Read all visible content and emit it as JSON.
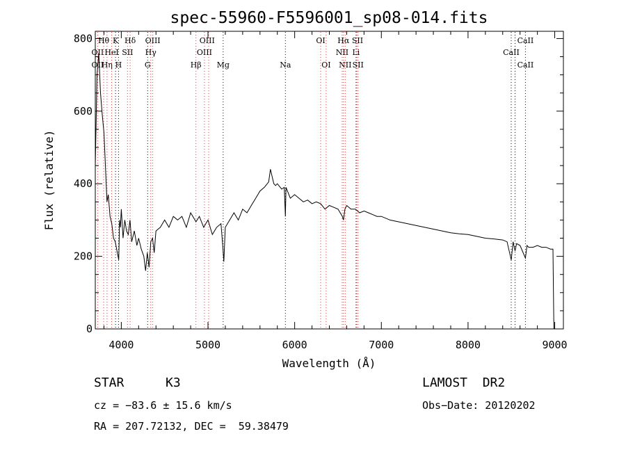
{
  "chart_data": {
    "type": "line",
    "title": "spec-55960-F5596001_sp08-014.fits",
    "xlabel": "Wavelength (Å)",
    "ylabel": "Flux (relative)",
    "xlim": [
      3700,
      9100
    ],
    "ylim": [
      0,
      820
    ],
    "x_ticks": [
      4000,
      5000,
      6000,
      7000,
      8000,
      9000
    ],
    "y_ticks": [
      0,
      200,
      400,
      600,
      800
    ],
    "series": [
      {
        "x": [
          3700,
          3720,
          3740,
          3760,
          3780,
          3800,
          3820,
          3835,
          3850,
          3870,
          3890,
          3910,
          3930,
          3950,
          3970,
          3980,
          3990,
          4000,
          4020,
          4040,
          4060,
          4080,
          4100,
          4120,
          4150,
          4180,
          4200,
          4230,
          4260,
          4280,
          4300,
          4320,
          4340,
          4360,
          4380,
          4400,
          4450,
          4500,
          4550,
          4600,
          4650,
          4700,
          4750,
          4800,
          4850,
          4861,
          4900,
          4950,
          5000,
          5050,
          5100,
          5150,
          5170,
          5183,
          5200,
          5250,
          5300,
          5350,
          5400,
          5450,
          5500,
          5550,
          5600,
          5650,
          5700,
          5720,
          5740,
          5760,
          5780,
          5800,
          5850,
          5880,
          5893,
          5900,
          5950,
          6000,
          6050,
          6100,
          6150,
          6200,
          6250,
          6300,
          6350,
          6400,
          6450,
          6500,
          6550,
          6563,
          6580,
          6600,
          6650,
          6700,
          6750,
          6800,
          6850,
          6900,
          6950,
          7000,
          7100,
          7200,
          7300,
          7400,
          7500,
          7600,
          7700,
          7800,
          7900,
          8000,
          8100,
          8200,
          8300,
          8400,
          8450,
          8498,
          8520,
          8542,
          8560,
          8600,
          8662,
          8680,
          8700,
          8750,
          8800,
          8850,
          8900,
          8950,
          8980,
          8990
        ],
        "y": [
          450,
          700,
          760,
          650,
          590,
          540,
          430,
          350,
          370,
          310,
          290,
          250,
          240,
          215,
          190,
          300,
          280,
          330,
          250,
          300,
          270,
          260,
          300,
          240,
          270,
          230,
          250,
          220,
          200,
          160,
          210,
          170,
          240,
          250,
          210,
          270,
          280,
          300,
          280,
          310,
          300,
          310,
          280,
          320,
          300,
          295,
          310,
          280,
          300,
          260,
          280,
          290,
          230,
          185,
          280,
          300,
          320,
          300,
          330,
          320,
          340,
          360,
          380,
          390,
          405,
          440,
          420,
          400,
          395,
          400,
          385,
          390,
          310,
          390,
          360,
          370,
          360,
          350,
          355,
          345,
          350,
          345,
          330,
          340,
          335,
          330,
          310,
          300,
          330,
          340,
          330,
          330,
          320,
          325,
          320,
          315,
          310,
          310,
          300,
          295,
          290,
          285,
          280,
          275,
          270,
          265,
          262,
          260,
          255,
          250,
          248,
          245,
          240,
          190,
          240,
          215,
          235,
          230,
          195,
          230,
          225,
          225,
          230,
          225,
          225,
          220,
          220,
          0
        ]
      }
    ],
    "lines_red": [
      {
        "x": 3727,
        "label": "OII"
      },
      {
        "x": 3797,
        "label": "Hθ"
      },
      {
        "x": 3835,
        "label": "Hη"
      },
      {
        "x": 3889,
        "label": "HeI"
      },
      {
        "x": 4072,
        "label": "SII"
      },
      {
        "x": 4102,
        "label": "Hδ"
      },
      {
        "x": 4340,
        "label": "Hγ"
      },
      {
        "x": 4363,
        "label": "OIII"
      },
      {
        "x": 4861,
        "label": "Hβ"
      },
      {
        "x": 4959,
        "label": "OIII"
      },
      {
        "x": 5007,
        "label": "OIII"
      },
      {
        "x": 6300,
        "label": "OI"
      },
      {
        "x": 6363,
        "label": "OI"
      },
      {
        "x": 6548,
        "label": "NII"
      },
      {
        "x": 6563,
        "label": "Hα"
      },
      {
        "x": 6583,
        "label": "NII"
      },
      {
        "x": 6717,
        "label": "SII"
      },
      {
        "x": 6731,
        "label": "SII"
      }
    ],
    "lines_black": [
      {
        "x": 3934,
        "label": "K"
      },
      {
        "x": 3968,
        "label": "H"
      },
      {
        "x": 4304,
        "label": "G"
      },
      {
        "x": 5175,
        "label": "Mg"
      },
      {
        "x": 5893,
        "label": "Na"
      },
      {
        "x": 6708,
        "label": "Li"
      },
      {
        "x": 8498,
        "label": "CaII"
      },
      {
        "x": 8542,
        "label": "CaII"
      },
      {
        "x": 8662,
        "label": "CaII"
      }
    ],
    "label_rows": [
      [
        {
          "x": 3797,
          "text": "Hθ"
        },
        {
          "x": 3934,
          "text": "K"
        },
        {
          "x": 4102,
          "text": "Hδ"
        },
        {
          "x": 4363,
          "text": "OIII"
        },
        {
          "x": 4990,
          "text": "OIII"
        },
        {
          "x": 6300,
          "text": "OI"
        },
        {
          "x": 6563,
          "text": "Hα"
        },
        {
          "x": 6725,
          "text": "SII"
        },
        {
          "x": 8662,
          "text": "CaII"
        }
      ],
      [
        {
          "x": 3727,
          "text": "OII"
        },
        {
          "x": 3889,
          "text": "HeI"
        },
        {
          "x": 4072,
          "text": "SII"
        },
        {
          "x": 4340,
          "text": "Hγ"
        },
        {
          "x": 4959,
          "text": "OIII"
        },
        {
          "x": 6548,
          "text": "NII"
        },
        {
          "x": 6708,
          "text": "Li"
        },
        {
          "x": 8498,
          "text": "CaII"
        }
      ],
      [
        {
          "x": 3727,
          "text": "OII"
        },
        {
          "x": 3835,
          "text": "Hη"
        },
        {
          "x": 3968,
          "text": "H"
        },
        {
          "x": 4304,
          "text": "G"
        },
        {
          "x": 4861,
          "text": "Hβ"
        },
        {
          "x": 5175,
          "text": "Mg"
        },
        {
          "x": 5893,
          "text": "Na"
        },
        {
          "x": 6363,
          "text": "OI"
        },
        {
          "x": 6583,
          "text": "NII"
        },
        {
          "x": 6731,
          "text": "SII"
        },
        {
          "x": 8662,
          "text": "CaII"
        }
      ]
    ]
  },
  "info": {
    "class_label": "STAR",
    "subclass": "K3",
    "survey": "LAMOST  DR2",
    "cz": "cz = −83.6 ± 15.6 km/s",
    "obs_date": "Obs−Date: 20120202",
    "radec": "RA = 207.72132, DEC =  59.38479"
  },
  "colors": {
    "line_red": "#d04040",
    "line_black": "#000000"
  }
}
